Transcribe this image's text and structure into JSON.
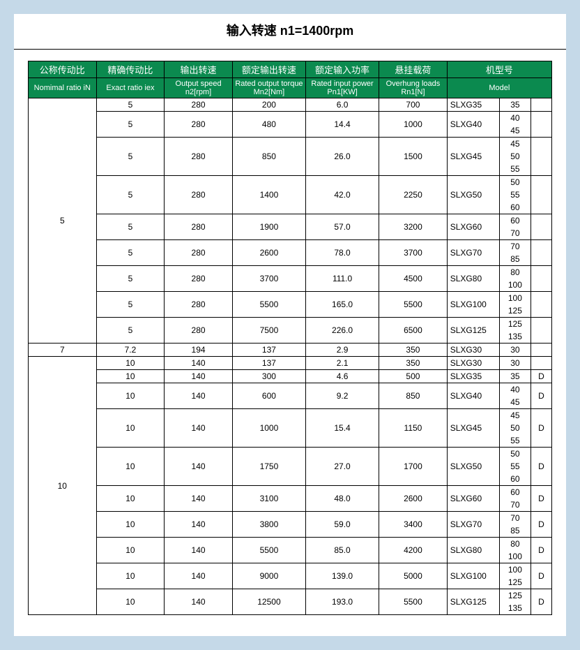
{
  "title": "输入转速 n1=1400rpm",
  "headers_cn": [
    "公称传动比",
    "精确传动比",
    "输出转速",
    "额定输出转速",
    "额定输入功率",
    "悬挂载荷",
    "机型号"
  ],
  "headers_en": [
    "Nomimal ratio iN",
    "Exact ratio iex",
    "Output speed n2[rpm]",
    "Rated output torque Mn2[Nm]",
    "Rated input power Pn1[KW]",
    "Overhung loads Rn1[N]",
    "Model"
  ],
  "colors": {
    "header_bg": "#0b8a4f",
    "header_fg": "#ffffff",
    "page_bg": "#c5d9e8",
    "table_bg": "#ffffff"
  },
  "col_widths_pct": [
    13,
    13,
    13,
    14,
    14,
    13,
    10,
    6,
    4
  ],
  "groups": [
    {
      "iN": "5",
      "rows": [
        {
          "iex": "5",
          "n2": "280",
          "mn2": "200",
          "pn1": "6.0",
          "rn1": "700",
          "model": "SLXG35",
          "nums": [
            "35"
          ],
          "d": ""
        },
        {
          "iex": "5",
          "n2": "280",
          "mn2": "480",
          "pn1": "14.4",
          "rn1": "1000",
          "model": "SLXG40",
          "nums": [
            "40",
            "45"
          ],
          "d": ""
        },
        {
          "iex": "5",
          "n2": "280",
          "mn2": "850",
          "pn1": "26.0",
          "rn1": "1500",
          "model": "SLXG45",
          "nums": [
            "45",
            "50",
            "55"
          ],
          "d": ""
        },
        {
          "iex": "5",
          "n2": "280",
          "mn2": "1400",
          "pn1": "42.0",
          "rn1": "2250",
          "model": "SLXG50",
          "nums": [
            "50",
            "55",
            "60"
          ],
          "d": ""
        },
        {
          "iex": "5",
          "n2": "280",
          "mn2": "1900",
          "pn1": "57.0",
          "rn1": "3200",
          "model": "SLXG60",
          "nums": [
            "60",
            "70"
          ],
          "d": ""
        },
        {
          "iex": "5",
          "n2": "280",
          "mn2": "2600",
          "pn1": "78.0",
          "rn1": "3700",
          "model": "SLXG70",
          "nums": [
            "70",
            "85"
          ],
          "d": ""
        },
        {
          "iex": "5",
          "n2": "280",
          "mn2": "3700",
          "pn1": "111.0",
          "rn1": "4500",
          "model": "SLXG80",
          "nums": [
            "80",
            "100"
          ],
          "d": ""
        },
        {
          "iex": "5",
          "n2": "280",
          "mn2": "5500",
          "pn1": "165.0",
          "rn1": "5500",
          "model": "SLXG100",
          "nums": [
            "100",
            "125"
          ],
          "d": ""
        },
        {
          "iex": "5",
          "n2": "280",
          "mn2": "7500",
          "pn1": "226.0",
          "rn1": "6500",
          "model": "SLXG125",
          "nums": [
            "125",
            "135"
          ],
          "d": ""
        }
      ]
    },
    {
      "iN": "7",
      "rows": [
        {
          "iex": "7.2",
          "n2": "194",
          "mn2": "137",
          "pn1": "2.9",
          "rn1": "350",
          "model": "SLXG30",
          "nums": [
            "30"
          ],
          "d": ""
        }
      ]
    },
    {
      "iN": "10",
      "rows": [
        {
          "iex": "10",
          "n2": "140",
          "mn2": "137",
          "pn1": "2.1",
          "rn1": "350",
          "model": "SLXG30",
          "nums": [
            "30"
          ],
          "d": ""
        },
        {
          "iex": "10",
          "n2": "140",
          "mn2": "300",
          "pn1": "4.6",
          "rn1": "500",
          "model": "SLXG35",
          "nums": [
            "35"
          ],
          "d": "D"
        },
        {
          "iex": "10",
          "n2": "140",
          "mn2": "600",
          "pn1": "9.2",
          "rn1": "850",
          "model": "SLXG40",
          "nums": [
            "40",
            "45"
          ],
          "d": "D"
        },
        {
          "iex": "10",
          "n2": "140",
          "mn2": "1000",
          "pn1": "15.4",
          "rn1": "1150",
          "model": "SLXG45",
          "nums": [
            "45",
            "50",
            "55"
          ],
          "d": "D"
        },
        {
          "iex": "10",
          "n2": "140",
          "mn2": "1750",
          "pn1": "27.0",
          "rn1": "1700",
          "model": "SLXG50",
          "nums": [
            "50",
            "55",
            "60"
          ],
          "d": "D"
        },
        {
          "iex": "10",
          "n2": "140",
          "mn2": "3100",
          "pn1": "48.0",
          "rn1": "2600",
          "model": "SLXG60",
          "nums": [
            "60",
            "70"
          ],
          "d": "D"
        },
        {
          "iex": "10",
          "n2": "140",
          "mn2": "3800",
          "pn1": "59.0",
          "rn1": "3400",
          "model": "SLXG70",
          "nums": [
            "70",
            "85"
          ],
          "d": "D"
        },
        {
          "iex": "10",
          "n2": "140",
          "mn2": "5500",
          "pn1": "85.0",
          "rn1": "4200",
          "model": "SLXG80",
          "nums": [
            "80",
            "100"
          ],
          "d": "D"
        },
        {
          "iex": "10",
          "n2": "140",
          "mn2": "9000",
          "pn1": "139.0",
          "rn1": "5000",
          "model": "SLXG100",
          "nums": [
            "100",
            "125"
          ],
          "d": "D"
        },
        {
          "iex": "10",
          "n2": "140",
          "mn2": "12500",
          "pn1": "193.0",
          "rn1": "5500",
          "model": "SLXG125",
          "nums": [
            "125",
            "135"
          ],
          "d": "D"
        }
      ]
    }
  ]
}
